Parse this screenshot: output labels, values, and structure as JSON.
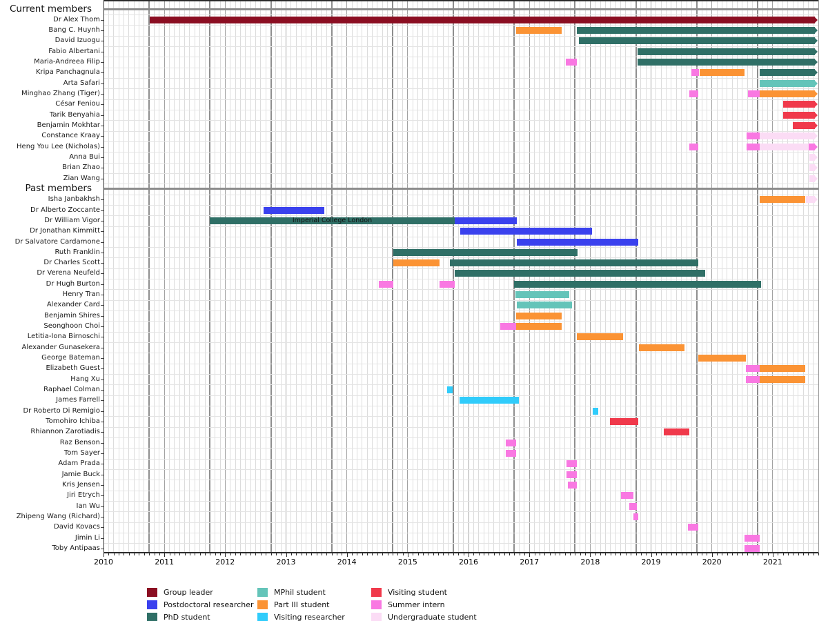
{
  "chart_data": {
    "type": "bar",
    "variant": "gantt-timeline-research-group",
    "x_axis": {
      "min": 2010,
      "max": 2021.75,
      "ticks": [
        "2010",
        "2011",
        "2012",
        "2013",
        "2014",
        "2015",
        "2016",
        "2017",
        "2018",
        "2019",
        "2020",
        "2021"
      ],
      "minor_unit": "month",
      "academic_year_gridline_month": 0.75
    },
    "now": 2021.69,
    "roles": {
      "group_leader": {
        "label": "Group leader",
        "color": "#8b0e22"
      },
      "postdoc": {
        "label": "Postdoctoral researcher",
        "color": "#3a41ee"
      },
      "phd": {
        "label": "PhD student",
        "color": "#2f6f66"
      },
      "mphil": {
        "label": "MPhil student",
        "color": "#64c4b9"
      },
      "part3": {
        "label": "Part III student",
        "color": "#fb9334"
      },
      "visiting_researcher": {
        "label": "Visiting researcher",
        "color": "#30ccfb"
      },
      "visiting_student": {
        "label": "Visiting student",
        "color": "#f0394b"
      },
      "summer_intern": {
        "label": "Summer intern",
        "color": "#f978e2"
      },
      "undergrad": {
        "label": "Undergraduate student",
        "color": "#fbdcf5"
      }
    },
    "legend_order": [
      "group_leader",
      "postdoc",
      "phd",
      "mphil",
      "part3",
      "visiting_researcher",
      "visiting_student",
      "summer_intern",
      "undergrad"
    ],
    "rows": [
      {
        "type": "section",
        "name": "Current members"
      },
      {
        "type": "member",
        "name": "Dr Alex Thom",
        "bars": [
          {
            "role": "group_leader",
            "start": 2010.76,
            "end": null
          }
        ]
      },
      {
        "type": "member",
        "name": "Bang C. Huynh",
        "bars": [
          {
            "role": "part3",
            "start": 2016.78,
            "end": 2017.53
          },
          {
            "role": "phd",
            "start": 2017.78,
            "end": null
          }
        ]
      },
      {
        "type": "member",
        "name": "David Izuogu",
        "bars": [
          {
            "role": "phd",
            "start": 2017.81,
            "end": null
          }
        ]
      },
      {
        "type": "member",
        "name": "Fabio Albertani",
        "bars": [
          {
            "role": "phd",
            "start": 2018.78,
            "end": null
          }
        ]
      },
      {
        "type": "member",
        "name": "Maria-Andreea Filip",
        "bars": [
          {
            "role": "summer_intern",
            "start": 2017.6,
            "end": 2017.78
          },
          {
            "role": "phd",
            "start": 2018.78,
            "end": null
          }
        ]
      },
      {
        "type": "member",
        "name": "Kripa Panchagnula",
        "bars": [
          {
            "role": "summer_intern",
            "start": 2019.66,
            "end": 2019.79
          },
          {
            "role": "part3",
            "start": 2019.8,
            "end": 2020.54
          },
          {
            "role": "phd",
            "start": 2020.79,
            "end": null
          }
        ]
      },
      {
        "type": "member",
        "name": "Arta Safari",
        "bars": [
          {
            "role": "mphil",
            "start": 2020.79,
            "end": null
          }
        ]
      },
      {
        "type": "member",
        "name": "Minghao Zhang (Tiger)",
        "bars": [
          {
            "role": "summer_intern",
            "start": 2019.63,
            "end": 2019.78
          },
          {
            "role": "summer_intern",
            "start": 2020.59,
            "end": 2020.79
          },
          {
            "role": "part3",
            "start": 2020.79,
            "end": null
          }
        ]
      },
      {
        "type": "member",
        "name": "César Feniou",
        "bars": [
          {
            "role": "visiting_student",
            "start": 2021.17,
            "end": null
          }
        ]
      },
      {
        "type": "member",
        "name": "Tarik Benyahia",
        "bars": [
          {
            "role": "visiting_student",
            "start": 2021.17,
            "end": null
          }
        ]
      },
      {
        "type": "member",
        "name": "Benjamin Mokhtar",
        "bars": [
          {
            "role": "visiting_student",
            "start": 2021.33,
            "end": null
          }
        ]
      },
      {
        "type": "member",
        "name": "Constance Kraay",
        "bars": [
          {
            "role": "summer_intern",
            "start": 2020.57,
            "end": 2020.79
          },
          {
            "role": "undergrad",
            "start": 2020.79,
            "end": null
          }
        ]
      },
      {
        "type": "member",
        "name": "Heng You Lee (Nicholas)",
        "bars": [
          {
            "role": "summer_intern",
            "start": 2019.63,
            "end": 2019.78
          },
          {
            "role": "summer_intern",
            "start": 2020.57,
            "end": 2020.79
          },
          {
            "role": "undergrad",
            "start": 2020.79,
            "end": 2021.59
          },
          {
            "role": "summer_intern",
            "start": 2021.59,
            "end": null
          }
        ]
      },
      {
        "type": "member",
        "name": "Anna Bui",
        "bars": [
          {
            "role": "undergrad",
            "start": 2021.6,
            "end": null
          }
        ]
      },
      {
        "type": "member",
        "name": "Brian Zhao",
        "bars": [
          {
            "role": "undergrad",
            "start": 2021.6,
            "end": null
          }
        ]
      },
      {
        "type": "member",
        "name": "Zian Wang",
        "bars": [
          {
            "role": "undergrad",
            "start": 2021.6,
            "end": null
          }
        ]
      },
      {
        "type": "section",
        "name": "Past members"
      },
      {
        "type": "member",
        "name": "Isha Janbakhsh",
        "bars": [
          {
            "role": "part3",
            "start": 2020.79,
            "end": 2021.54
          },
          {
            "role": "undergrad",
            "start": 2021.54,
            "end": null
          }
        ]
      },
      {
        "type": "member",
        "name": "Dr Alberto Zoccante",
        "bars": [
          {
            "role": "postdoc",
            "start": 2012.63,
            "end": 2013.63
          }
        ]
      },
      {
        "type": "member",
        "name": "Dr William Vigor",
        "bars": [
          {
            "role": "phd",
            "start": 2011.75,
            "end": 2015.77,
            "text": "Imperial College London"
          },
          {
            "role": "postdoc",
            "start": 2015.77,
            "end": 2016.79
          }
        ]
      },
      {
        "type": "member",
        "name": "Dr Jonathan Kimmitt",
        "bars": [
          {
            "role": "postdoc",
            "start": 2015.86,
            "end": 2018.03
          }
        ]
      },
      {
        "type": "member",
        "name": "Dr Salvatore Cardamone",
        "bars": [
          {
            "role": "postdoc",
            "start": 2016.79,
            "end": 2018.79
          }
        ]
      },
      {
        "type": "member",
        "name": "Ruth Franklin",
        "bars": [
          {
            "role": "phd",
            "start": 2014.76,
            "end": 2017.79
          }
        ]
      },
      {
        "type": "member",
        "name": "Dr Charles Scott",
        "bars": [
          {
            "role": "part3",
            "start": 2014.76,
            "end": 2015.52
          },
          {
            "role": "phd",
            "start": 2015.69,
            "end": 2019.78
          }
        ]
      },
      {
        "type": "member",
        "name": "Dr Verena Neufeld",
        "bars": [
          {
            "role": "phd",
            "start": 2015.77,
            "end": 2019.89
          }
        ]
      },
      {
        "type": "member",
        "name": "Dr Hugh Burton",
        "bars": [
          {
            "role": "summer_intern",
            "start": 2014.52,
            "end": 2014.76
          },
          {
            "role": "summer_intern",
            "start": 2015.52,
            "end": 2015.77
          },
          {
            "role": "phd",
            "start": 2016.75,
            "end": 2020.81
          }
        ]
      },
      {
        "type": "member",
        "name": "Henry Tran",
        "bars": [
          {
            "role": "mphil",
            "start": 2016.77,
            "end": 2017.66
          }
        ]
      },
      {
        "type": "member",
        "name": "Alexander Card",
        "bars": [
          {
            "role": "mphil",
            "start": 2016.79,
            "end": 2017.7
          }
        ]
      },
      {
        "type": "member",
        "name": "Benjamin Shires",
        "bars": [
          {
            "role": "part3",
            "start": 2016.78,
            "end": 2017.53
          }
        ]
      },
      {
        "type": "member",
        "name": "Seonghoon Choi",
        "bars": [
          {
            "role": "summer_intern",
            "start": 2016.52,
            "end": 2016.78
          },
          {
            "role": "part3",
            "start": 2016.78,
            "end": 2017.53
          }
        ]
      },
      {
        "type": "member",
        "name": "Letitia-Iona Birnoschi",
        "bars": [
          {
            "role": "part3",
            "start": 2017.78,
            "end": 2018.54
          }
        ]
      },
      {
        "type": "member",
        "name": "Alexander Gunasekera",
        "bars": [
          {
            "role": "part3",
            "start": 2018.8,
            "end": 2019.55
          }
        ]
      },
      {
        "type": "member",
        "name": "George Bateman",
        "bars": [
          {
            "role": "part3",
            "start": 2019.78,
            "end": 2020.56
          }
        ]
      },
      {
        "type": "member",
        "name": "Elizabeth Guest",
        "bars": [
          {
            "role": "summer_intern",
            "start": 2020.56,
            "end": 2020.79
          },
          {
            "role": "part3",
            "start": 2020.79,
            "end": 2021.54
          }
        ]
      },
      {
        "type": "member",
        "name": "Hang Xu",
        "bars": [
          {
            "role": "summer_intern",
            "start": 2020.56,
            "end": 2020.79
          },
          {
            "role": "part3",
            "start": 2020.79,
            "end": 2021.54
          }
        ]
      },
      {
        "type": "member",
        "name": "Raphael Colman",
        "bars": [
          {
            "role": "visiting_researcher",
            "start": 2015.65,
            "end": 2015.74
          }
        ]
      },
      {
        "type": "member",
        "name": "James Farrell",
        "bars": [
          {
            "role": "visiting_researcher",
            "start": 2015.85,
            "end": 2016.83
          }
        ]
      },
      {
        "type": "member",
        "name": "Dr Roberto Di Remigio",
        "bars": [
          {
            "role": "visiting_researcher",
            "start": 2018.04,
            "end": 2018.13
          }
        ]
      },
      {
        "type": "member",
        "name": "Tomohiro Ichiba",
        "bars": [
          {
            "role": "visiting_student",
            "start": 2018.32,
            "end": 2018.79
          }
        ]
      },
      {
        "type": "member",
        "name": "Rhiannon Zarotiadis",
        "bars": [
          {
            "role": "visiting_student",
            "start": 2019.21,
            "end": 2019.63
          }
        ]
      },
      {
        "type": "member",
        "name": "Raz Benson",
        "bars": [
          {
            "role": "summer_intern",
            "start": 2016.61,
            "end": 2016.78
          }
        ]
      },
      {
        "type": "member",
        "name": "Tom Sayer",
        "bars": [
          {
            "role": "summer_intern",
            "start": 2016.61,
            "end": 2016.78
          }
        ]
      },
      {
        "type": "member",
        "name": "Adam Prada",
        "bars": [
          {
            "role": "summer_intern",
            "start": 2017.61,
            "end": 2017.78
          }
        ]
      },
      {
        "type": "member",
        "name": "Jamie Buck",
        "bars": [
          {
            "role": "summer_intern",
            "start": 2017.61,
            "end": 2017.78
          }
        ]
      },
      {
        "type": "member",
        "name": "Kris Jensen",
        "bars": [
          {
            "role": "summer_intern",
            "start": 2017.63,
            "end": 2017.78
          }
        ]
      },
      {
        "type": "member",
        "name": "Jiri Etrych",
        "bars": [
          {
            "role": "summer_intern",
            "start": 2018.51,
            "end": 2018.71
          }
        ]
      },
      {
        "type": "member",
        "name": "Ian Wu",
        "bars": [
          {
            "role": "summer_intern",
            "start": 2018.64,
            "end": 2018.77
          }
        ]
      },
      {
        "type": "member",
        "name": "Zhipeng Wang (Richard)",
        "bars": [
          {
            "role": "summer_intern",
            "start": 2018.71,
            "end": 2018.79
          }
        ]
      },
      {
        "type": "member",
        "name": "David Kovacs",
        "bars": [
          {
            "role": "summer_intern",
            "start": 2019.61,
            "end": 2019.78
          }
        ]
      },
      {
        "type": "member",
        "name": "Jimin Li",
        "bars": [
          {
            "role": "summer_intern",
            "start": 2020.54,
            "end": 2020.79
          }
        ]
      },
      {
        "type": "member",
        "name": "Toby Antipaas",
        "bars": [
          {
            "role": "summer_intern",
            "start": 2020.54,
            "end": 2020.79
          }
        ]
      }
    ]
  }
}
